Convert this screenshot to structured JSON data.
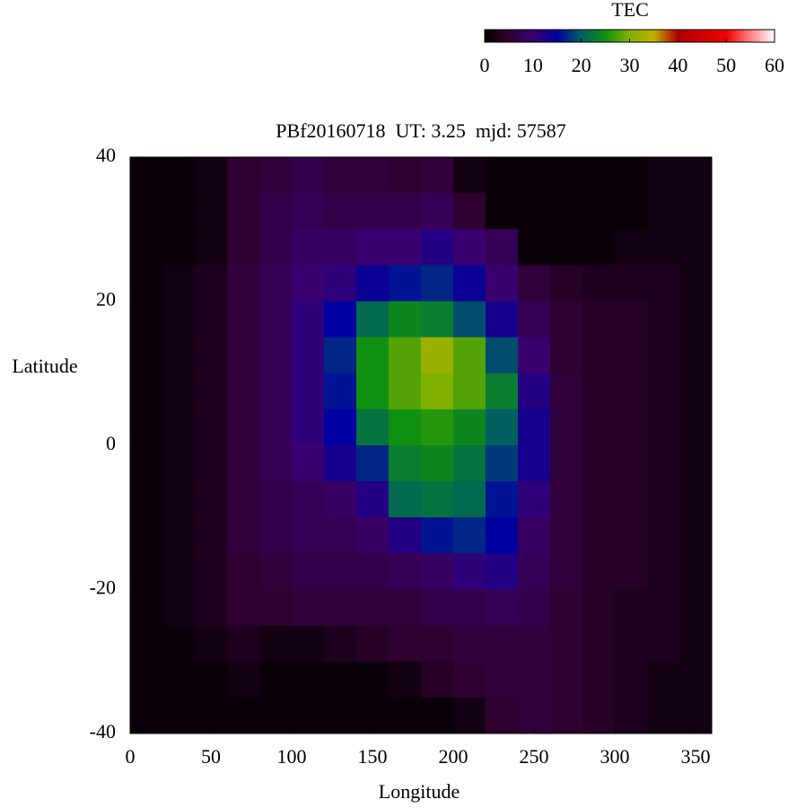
{
  "chart_data": {
    "type": "heatmap",
    "title": "PBf20160718  UT: 3.25  mjd: 57587",
    "xlabel": "Longitude",
    "ylabel": "Latitude",
    "colorbar_title": "TEC",
    "xlim": [
      0,
      360
    ],
    "xticks": [
      0,
      50,
      100,
      150,
      200,
      250,
      300,
      350
    ],
    "ylim": [
      -40,
      40
    ],
    "yticks": [
      -40,
      -20,
      0,
      20,
      40
    ],
    "zlim": [
      0,
      60
    ],
    "zticks": [
      0,
      10,
      20,
      30,
      40,
      50,
      60
    ],
    "colorscale": [
      "#000000",
      "#300030",
      "#3a0070",
      "#0000a0",
      "#006060",
      "#109010",
      "#80b000",
      "#c0b000",
      "#b00000",
      "#d00000",
      "#f00000",
      "#ff8080",
      "#ffffff"
    ],
    "x_edges": [
      0,
      20,
      40,
      60,
      80,
      100,
      120,
      140,
      160,
      180,
      200,
      220,
      240,
      260,
      280,
      300,
      320,
      340,
      360
    ],
    "y_edges": [
      40,
      35,
      30,
      25,
      20,
      15,
      10,
      5,
      0,
      -5,
      -10,
      -15,
      -20,
      -25,
      -30,
      -35,
      -40
    ],
    "z": [
      [
        1,
        1,
        2,
        5,
        6,
        7,
        6,
        6,
        5,
        6,
        2,
        1,
        1,
        1,
        1,
        1,
        2,
        2
      ],
      [
        1,
        1,
        2,
        5,
        7,
        8,
        7,
        7,
        7,
        8,
        5,
        1,
        1,
        1,
        1,
        1,
        2,
        2
      ],
      [
        1,
        1,
        2,
        5,
        7,
        9,
        9,
        10,
        10,
        12,
        10,
        8,
        1,
        1,
        1,
        2,
        2,
        2
      ],
      [
        1,
        2,
        3,
        6,
        8,
        10,
        11,
        14,
        16,
        17,
        14,
        10,
        6,
        4,
        3,
        3,
        3,
        2
      ],
      [
        1,
        2,
        3,
        6,
        8,
        11,
        15,
        21,
        24,
        23,
        19,
        13,
        8,
        5,
        4,
        4,
        3,
        2
      ],
      [
        1,
        2,
        3,
        6,
        8,
        11,
        17,
        25,
        28,
        32,
        28,
        19,
        10,
        5,
        4,
        4,
        3,
        2
      ],
      [
        1,
        2,
        3,
        6,
        8,
        11,
        16,
        25,
        28,
        30,
        28,
        23,
        12,
        6,
        4,
        4,
        3,
        2
      ],
      [
        1,
        2,
        3,
        6,
        8,
        11,
        15,
        22,
        25,
        26,
        24,
        20,
        13,
        6,
        4,
        4,
        3,
        2
      ],
      [
        1,
        2,
        3,
        6,
        8,
        10,
        13,
        17,
        23,
        24,
        22,
        18,
        13,
        6,
        4,
        4,
        3,
        2
      ],
      [
        1,
        2,
        3,
        6,
        7,
        8,
        9,
        12,
        21,
        22,
        21,
        16,
        11,
        6,
        4,
        4,
        3,
        2
      ],
      [
        1,
        2,
        3,
        6,
        7,
        8,
        8,
        9,
        12,
        16,
        17,
        15,
        9,
        6,
        4,
        4,
        3,
        2
      ],
      [
        1,
        2,
        3,
        5,
        6,
        7,
        7,
        7,
        8,
        9,
        11,
        12,
        8,
        6,
        4,
        4,
        3,
        2
      ],
      [
        1,
        2,
        3,
        5,
        5,
        6,
        6,
        6,
        6,
        7,
        7,
        8,
        7,
        5,
        4,
        3,
        3,
        2
      ],
      [
        1,
        1,
        2,
        3,
        2,
        2,
        3,
        4,
        5,
        5,
        6,
        6,
        6,
        5,
        4,
        3,
        3,
        2
      ],
      [
        1,
        1,
        1,
        2,
        1,
        1,
        1,
        1,
        2,
        4,
        5,
        6,
        6,
        5,
        4,
        3,
        2,
        2
      ],
      [
        1,
        1,
        1,
        1,
        1,
        1,
        1,
        1,
        1,
        1,
        2,
        5,
        6,
        5,
        4,
        3,
        2,
        2
      ]
    ]
  }
}
